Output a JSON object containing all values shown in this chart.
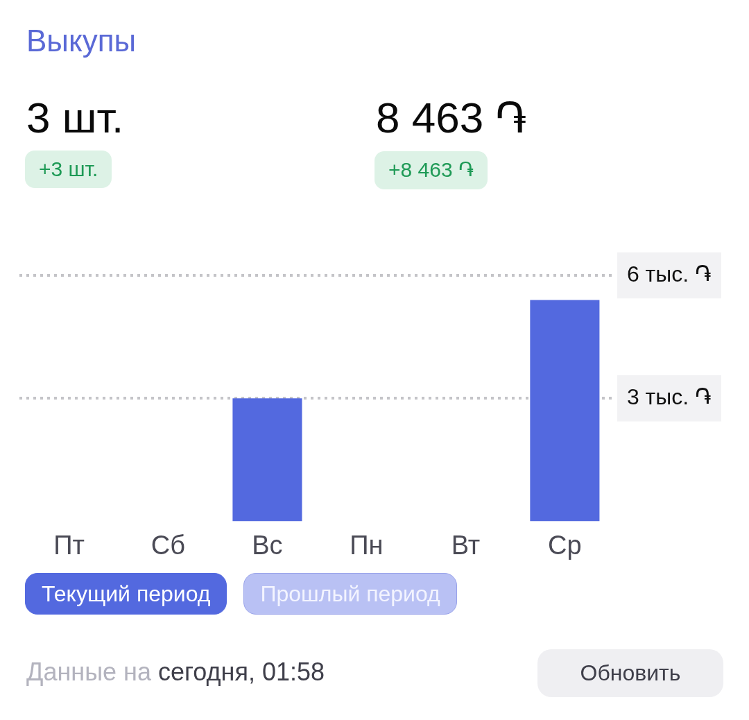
{
  "chart_data": {
    "type": "bar",
    "title": "Выкупы",
    "categories": [
      "Пт",
      "Сб",
      "Вс",
      "Пн",
      "Вт",
      "Ср"
    ],
    "series": [
      {
        "name": "Текущий период",
        "color": "#5369df",
        "values": [
          0,
          0,
          3,
          0,
          0,
          5.4
        ]
      },
      {
        "name": "Прошлый период",
        "values": [
          null,
          null,
          null,
          null,
          null,
          null
        ]
      }
    ],
    "ylim": [
      0,
      6
    ],
    "yticks": [
      {
        "value": 3,
        "label": "3 тыс. ֏"
      },
      {
        "value": 6,
        "label": "6 тыс. ֏"
      }
    ],
    "grid": "y",
    "legend": "bottom",
    "annotations": [
      "3 шт.",
      "+3 шт.",
      "8 463 ֏",
      "+8 463 ֏",
      "Данные на",
      "сегодня, 01:58",
      "Обновить"
    ]
  }
}
